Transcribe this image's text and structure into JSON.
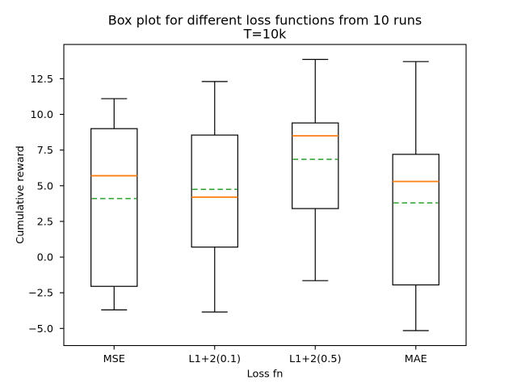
{
  "chart_data": {
    "type": "box",
    "title": "Box plot for different loss functions from 10 runs",
    "subtitle": "T=10k",
    "xlabel": "Loss fn",
    "ylabel": "Cumulative reward",
    "categories": [
      "MSE",
      "L1+2(0.1)",
      "L1+2(0.5)",
      "MAE"
    ],
    "series": [
      {
        "name": "MSE",
        "whisker_low": -3.7,
        "q1": -2.05,
        "median": 5.7,
        "mean": 4.1,
        "q3": 9.0,
        "whisker_high": 11.1
      },
      {
        "name": "L1+2(0.1)",
        "whisker_low": -3.85,
        "q1": 0.7,
        "median": 4.2,
        "mean": 4.75,
        "q3": 8.55,
        "whisker_high": 12.3
      },
      {
        "name": "L1+2(0.5)",
        "whisker_low": -1.65,
        "q1": 3.4,
        "median": 8.5,
        "mean": 6.85,
        "q3": 9.4,
        "whisker_high": 13.85
      },
      {
        "name": "MAE",
        "whisker_low": -5.15,
        "q1": -1.95,
        "median": 5.3,
        "mean": 3.8,
        "q3": 7.2,
        "whisker_high": 13.7
      }
    ],
    "y_ticks": [
      -5.0,
      -2.5,
      0.0,
      2.5,
      5.0,
      7.5,
      10.0,
      12.5
    ],
    "y_tick_labels": [
      "−5.0",
      "−2.5",
      "0.0",
      "2.5",
      "5.0",
      "7.5",
      "10.0",
      "12.5"
    ],
    "ylim": [
      -6.2,
      14.9
    ],
    "grid": false,
    "legend": null,
    "colors": {
      "median_line": "#ff7f0e",
      "mean_line": "#2ca02c",
      "box_line": "#000000",
      "background": "#ffffff"
    },
    "median_line_style": "solid",
    "mean_line_style": "dashed"
  }
}
